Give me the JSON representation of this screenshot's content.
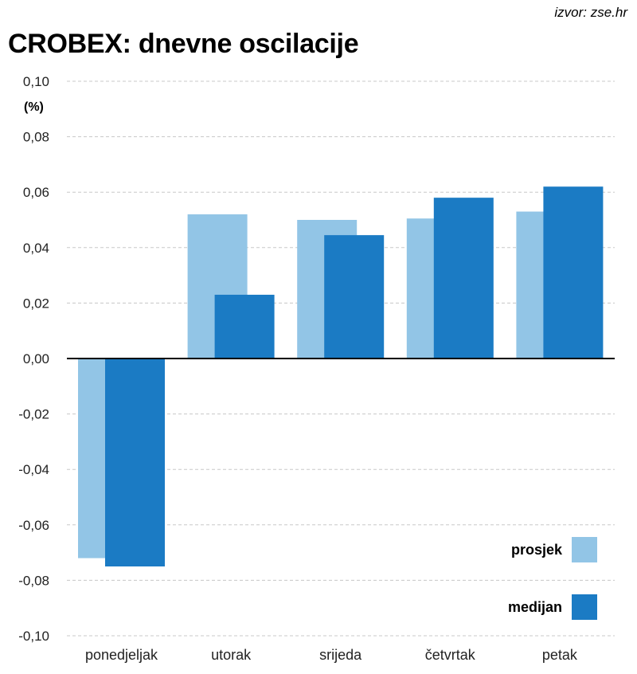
{
  "source": "izvor: zse.hr",
  "title": "CROBEX: dnevne oscilacije",
  "colors": {
    "prosjek": "#92c5e6",
    "medijan": "#1b7bc4"
  },
  "chart_data": {
    "type": "bar",
    "title": "CROBEX: dnevne oscilacije",
    "ylabel": "(%)",
    "xlabel": "",
    "ylim": [
      -0.1,
      0.1
    ],
    "yticks": [
      "0,10",
      "0,08",
      "0,06",
      "0,04",
      "0,02",
      "0,00",
      "-0,02",
      "-0,04",
      "-0,06",
      "-0,08",
      "-0,10"
    ],
    "categories": [
      "ponedjeljak",
      "utorak",
      "srijeda",
      "četvrtak",
      "petak"
    ],
    "series": [
      {
        "name": "prosjek",
        "values": [
          -0.072,
          0.052,
          0.05,
          0.0505,
          0.053
        ]
      },
      {
        "name": "medijan",
        "values": [
          -0.075,
          0.023,
          0.0445,
          0.058,
          0.062
        ]
      }
    ],
    "legend_position": "bottom-right",
    "grid": true
  }
}
